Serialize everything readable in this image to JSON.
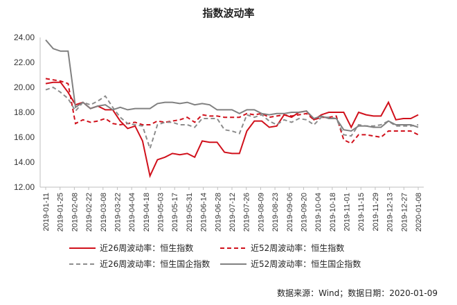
{
  "page": {
    "title": "指数波动率",
    "source": "数据来源：Wind；数据日期：2020-01-09"
  },
  "chart_data": {
    "type": "line",
    "title": "指数波动率",
    "ylim": [
      12,
      24
    ],
    "yticks": [
      "12.00",
      "14.00",
      "16.00",
      "18.00",
      "20.00",
      "22.00",
      "24.00"
    ],
    "x_tick_labels": [
      "2019-01-11",
      "2019-01-25",
      "2019-02-08",
      "2019-02-22",
      "2019-03-08",
      "2019-03-22",
      "2019-04-04",
      "2019-04-18",
      "2019-05-03",
      "2019-05-17",
      "2019-05-31",
      "2019-06-14",
      "2019-06-28",
      "2019-07-12",
      "2019-07-26",
      "2019-08-09",
      "2019-08-23",
      "2019-09-06",
      "2019-09-20",
      "2019-10-04",
      "2019-10-18",
      "2019-11-01",
      "2019-11-15",
      "2019-11-29",
      "2019-12-13",
      "2019-12-27",
      "2020-01-08"
    ],
    "legend_placement": "bottom",
    "grid": false,
    "series": [
      {
        "name": "近26周波动率：恒生指数",
        "color": "#d0101b",
        "dash": "solid",
        "values": [
          20.3,
          20.4,
          20.4,
          19.6,
          18.6,
          18.8,
          18.3,
          18.5,
          18.2,
          18.2,
          17.3,
          16.7,
          16.9,
          15.7,
          12.9,
          14.2,
          14.4,
          14.7,
          14.6,
          14.7,
          14.4,
          15.7,
          15.6,
          15.6,
          14.8,
          14.7,
          14.7,
          16.5,
          17.3,
          17.3,
          16.8,
          16.9,
          17.8,
          17.6,
          18.0,
          18.1,
          17.4,
          17.8,
          18.0,
          18.0,
          18.0,
          16.8,
          18.0,
          17.8,
          17.7,
          17.7,
          18.8,
          17.4,
          17.5,
          17.5,
          17.8
        ]
      },
      {
        "name": "近52周波动率：恒生指数",
        "color": "#d0101b",
        "dash": "dashed",
        "values": [
          20.7,
          20.6,
          20.5,
          20.3,
          17.1,
          17.4,
          17.2,
          17.3,
          17.5,
          17.1,
          17.0,
          17.1,
          17.2,
          17.0,
          17.0,
          17.3,
          17.2,
          17.3,
          17.4,
          17.6,
          17.2,
          17.8,
          17.7,
          17.7,
          17.6,
          17.6,
          17.6,
          17.9,
          17.8,
          17.9,
          17.6,
          17.7,
          17.8,
          17.7,
          17.8,
          17.9,
          17.4,
          17.6,
          17.6,
          17.7,
          15.8,
          15.5,
          16.2,
          16.2,
          16.1,
          16.0,
          16.5,
          16.5,
          16.5,
          16.5,
          16.2
        ]
      },
      {
        "name": "近26周波动率：恒生国企指数",
        "color": "#8c8c8c",
        "dash": "dashed",
        "values": [
          19.8,
          20.0,
          19.6,
          19.1,
          18.1,
          18.8,
          18.6,
          18.9,
          19.3,
          18.4,
          17.6,
          17.1,
          17.0,
          16.9,
          15.1,
          17.0,
          17.2,
          17.2,
          17.0,
          17.0,
          16.8,
          17.5,
          17.5,
          17.5,
          16.6,
          16.5,
          16.3,
          17.8,
          17.6,
          17.8,
          17.3,
          17.0,
          17.4,
          17.2,
          17.5,
          17.4,
          17.0,
          17.6,
          17.6,
          17.5,
          16.2,
          16.1,
          17.0,
          16.9,
          16.9,
          17.0,
          17.3,
          16.9,
          16.9,
          16.9,
          17.0
        ]
      },
      {
        "name": "近52周波动率：恒生国企指数",
        "color": "#808080",
        "dash": "solid",
        "values": [
          23.8,
          23.1,
          22.9,
          22.9,
          18.4,
          18.8,
          18.3,
          18.5,
          18.6,
          18.2,
          18.4,
          18.2,
          18.3,
          18.3,
          18.3,
          18.7,
          18.8,
          18.8,
          18.7,
          18.8,
          18.6,
          18.7,
          18.6,
          18.2,
          18.2,
          18.2,
          17.9,
          18.2,
          18.2,
          17.9,
          17.8,
          17.9,
          17.9,
          18.0,
          18.0,
          18.1,
          17.5,
          17.7,
          17.5,
          17.5,
          16.6,
          16.5,
          16.9,
          16.9,
          16.8,
          16.8,
          17.3,
          17.0,
          17.0,
          17.0,
          16.8
        ]
      }
    ]
  }
}
